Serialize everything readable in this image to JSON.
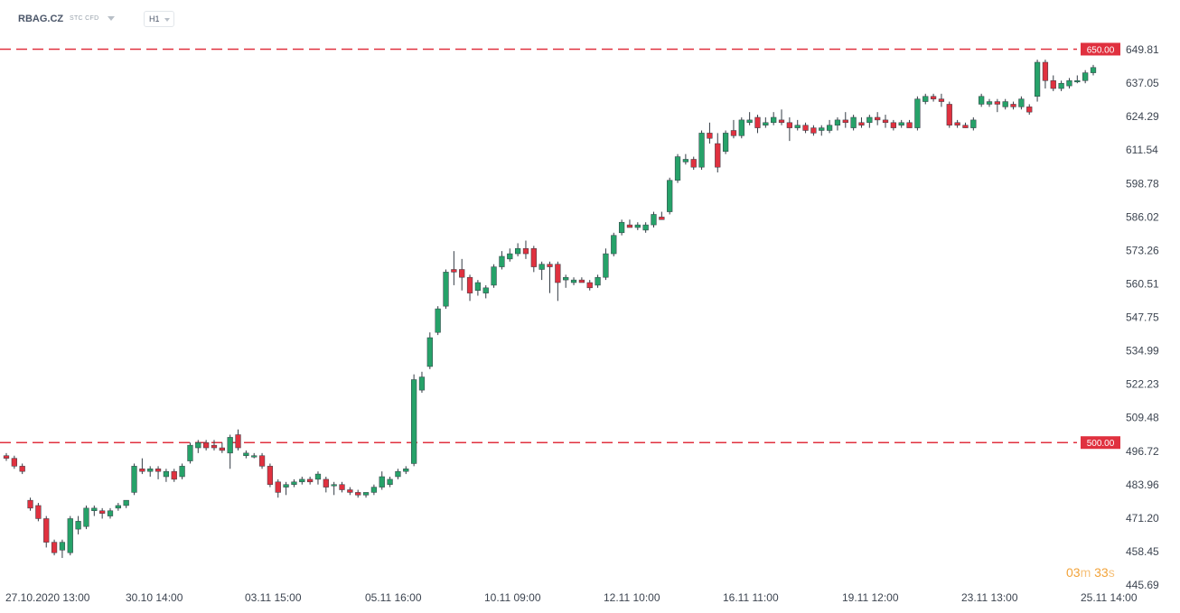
{
  "header": {
    "symbol": "RBAG.CZ",
    "symbol_type": "STC CFD",
    "timeframe": "H1"
  },
  "countdown": {
    "minutes": "03",
    "minutes_unit": "m",
    "seconds": "33",
    "seconds_unit": "s"
  },
  "colors": {
    "up": "#26a269",
    "down": "#e0313f",
    "level": "#e0313f",
    "text": "#4a5568"
  },
  "chart_data": {
    "type": "candlestick",
    "ylim": [
      445.69,
      662.0
    ],
    "y_ticks": [
      "649.81",
      "637.05",
      "624.29",
      "611.54",
      "598.78",
      "586.02",
      "573.26",
      "560.51",
      "547.75",
      "534.99",
      "522.23",
      "509.48",
      "496.72",
      "483.96",
      "471.20",
      "458.45",
      "445.69"
    ],
    "x_ticks": [
      "27.10.2020  13:00",
      "30.10  14:00",
      "03.11  15:00",
      "05.11  16:00",
      "10.11  09:00",
      "12.11  10:00",
      "16.11  11:00",
      "19.11  12:00",
      "23.11  13:00",
      "25.11  14:00"
    ],
    "levels": [
      {
        "value": 650.0,
        "label": "650.00"
      },
      {
        "value": 500.0,
        "label": "500.00"
      }
    ],
    "candles": [
      [
        495,
        496,
        493,
        494
      ],
      [
        494,
        495,
        490,
        491
      ],
      [
        491,
        492,
        488,
        489
      ],
      [
        478,
        479,
        474,
        475
      ],
      [
        476,
        477,
        470,
        471
      ],
      [
        471,
        472,
        460,
        462
      ],
      [
        462,
        463,
        457,
        458
      ],
      [
        459,
        463,
        456,
        462
      ],
      [
        458,
        472,
        457,
        471
      ],
      [
        467,
        472,
        465,
        470
      ],
      [
        468,
        476,
        467,
        475
      ],
      [
        474,
        476,
        472,
        475
      ],
      [
        474,
        475,
        471,
        473
      ],
      [
        472,
        475,
        471,
        474
      ],
      [
        475,
        477,
        474,
        476
      ],
      [
        476,
        478,
        475,
        478
      ],
      [
        481,
        492,
        480,
        491
      ],
      [
        490,
        494,
        488,
        489
      ],
      [
        489,
        491,
        487,
        490
      ],
      [
        490,
        491,
        486,
        489
      ],
      [
        487,
        490,
        485,
        489
      ],
      [
        489,
        490,
        485,
        486
      ],
      [
        487,
        492,
        486,
        491
      ],
      [
        493,
        500,
        492,
        499
      ],
      [
        498,
        501,
        496,
        500
      ],
      [
        500,
        501,
        497,
        498
      ],
      [
        499,
        501,
        497,
        498
      ],
      [
        498,
        500,
        496,
        497
      ],
      [
        496,
        503,
        490,
        502
      ],
      [
        503,
        505,
        497,
        498
      ],
      [
        495,
        497,
        494,
        496
      ],
      [
        495,
        496,
        494,
        495
      ],
      [
        495,
        496,
        490,
        491
      ],
      [
        491,
        492,
        483,
        484
      ],
      [
        485,
        486,
        479,
        481
      ],
      [
        483,
        485,
        480,
        484
      ],
      [
        484,
        486,
        483,
        485
      ],
      [
        485,
        487,
        484,
        486
      ],
      [
        486,
        487,
        484,
        485
      ],
      [
        486,
        489,
        484,
        488
      ],
      [
        486,
        487,
        481,
        483
      ],
      [
        484,
        485,
        480,
        484
      ],
      [
        484,
        485,
        481,
        482
      ],
      [
        482,
        483,
        480,
        481
      ],
      [
        481,
        482,
        479,
        480
      ],
      [
        480,
        481,
        479,
        481
      ],
      [
        481,
        484,
        480,
        483
      ],
      [
        483,
        489,
        482,
        487
      ],
      [
        484,
        487,
        483,
        486
      ],
      [
        487,
        490,
        486,
        489
      ],
      [
        489,
        491,
        488,
        490
      ],
      [
        492,
        526,
        491,
        524
      ],
      [
        520,
        527,
        519,
        525
      ],
      [
        529,
        542,
        528,
        540
      ],
      [
        542,
        552,
        541,
        551
      ],
      [
        552,
        566,
        551,
        565
      ],
      [
        566,
        573,
        560,
        565
      ],
      [
        566,
        570,
        558,
        563
      ],
      [
        563,
        564,
        554,
        557
      ],
      [
        558,
        562,
        556,
        561
      ],
      [
        557,
        560,
        555,
        559
      ],
      [
        560,
        568,
        559,
        567
      ],
      [
        567,
        573,
        566,
        571
      ],
      [
        570,
        574,
        569,
        572
      ],
      [
        572,
        576,
        571,
        574
      ],
      [
        574,
        577,
        570,
        572
      ],
      [
        574,
        575,
        565,
        567
      ],
      [
        566,
        569,
        562,
        568
      ],
      [
        568,
        569,
        557,
        567
      ],
      [
        568,
        569,
        554,
        561
      ],
      [
        562,
        564,
        559,
        563
      ],
      [
        561,
        563,
        560,
        562
      ],
      [
        562,
        563,
        561,
        561
      ],
      [
        561,
        562,
        558,
        559
      ],
      [
        560,
        564,
        559,
        563
      ],
      [
        563,
        574,
        562,
        572
      ],
      [
        572,
        580,
        571,
        579
      ],
      [
        580,
        585,
        579,
        584
      ],
      [
        583,
        585,
        582,
        582
      ],
      [
        582,
        584,
        581,
        583
      ],
      [
        581,
        584,
        580,
        583
      ],
      [
        583,
        588,
        582,
        587
      ],
      [
        586,
        588,
        585,
        585
      ],
      [
        588,
        601,
        587,
        600
      ],
      [
        600,
        610,
        599,
        609
      ],
      [
        607,
        610,
        606,
        608
      ],
      [
        608,
        609,
        604,
        605
      ],
      [
        605,
        619,
        604,
        618
      ],
      [
        618,
        622,
        614,
        616
      ],
      [
        614,
        618,
        603,
        605
      ],
      [
        611,
        619,
        610,
        618
      ],
      [
        619,
        623,
        616,
        617
      ],
      [
        617,
        624,
        616,
        623
      ],
      [
        622,
        626,
        621,
        623
      ],
      [
        624,
        625,
        618,
        620
      ],
      [
        621,
        624,
        620,
        622
      ],
      [
        622,
        626,
        621,
        624
      ],
      [
        623,
        627,
        621,
        622
      ],
      [
        622,
        624,
        615,
        620
      ],
      [
        620,
        623,
        619,
        621
      ],
      [
        621,
        622,
        618,
        619
      ],
      [
        620,
        621,
        617,
        618
      ],
      [
        619,
        621,
        617,
        620
      ],
      [
        619,
        623,
        618,
        621
      ],
      [
        621,
        624,
        619,
        623
      ],
      [
        623,
        626,
        620,
        622
      ],
      [
        620,
        625,
        619,
        624
      ],
      [
        622,
        624,
        620,
        621
      ],
      [
        622,
        625,
        620,
        624
      ],
      [
        624,
        626,
        621,
        623
      ],
      [
        623,
        625,
        620,
        622
      ],
      [
        622,
        623,
        619,
        620
      ],
      [
        621,
        623,
        620,
        622
      ],
      [
        622,
        623,
        620,
        620
      ],
      [
        620,
        632,
        619,
        631
      ],
      [
        630,
        633,
        629,
        632
      ],
      [
        632,
        633,
        630,
        631
      ],
      [
        631,
        633,
        628,
        630
      ],
      [
        629,
        630,
        620,
        621
      ],
      [
        622,
        623,
        620,
        621
      ],
      [
        621,
        622,
        620,
        620
      ],
      [
        620,
        624,
        619,
        623
      ],
      [
        629,
        633,
        628,
        632
      ],
      [
        629,
        631,
        628,
        630
      ],
      [
        630,
        631,
        626,
        629
      ],
      [
        628,
        631,
        627,
        630
      ],
      [
        629,
        630,
        627,
        628
      ],
      [
        628,
        632,
        627,
        631
      ],
      [
        628,
        629,
        625,
        626
      ],
      [
        632,
        646,
        630,
        645
      ],
      [
        645,
        646,
        635,
        638
      ],
      [
        638,
        640,
        634,
        635
      ],
      [
        635,
        638,
        634,
        637
      ],
      [
        636,
        639,
        635,
        638
      ],
      [
        638,
        640,
        637,
        638
      ],
      [
        638,
        642,
        637,
        641
      ],
      [
        641,
        644,
        640,
        643
      ]
    ]
  }
}
